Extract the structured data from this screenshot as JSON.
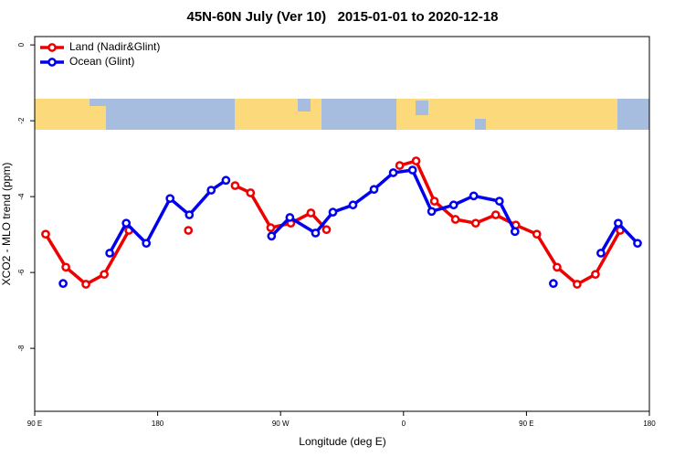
{
  "chart_data": {
    "type": "line",
    "title": "45N-60N July (Ver 10)   2015-01-01 to 2020-12-18",
    "x_label": "Longitude (deg E)",
    "y_label": "XCO2 - MLO trend (ppm)",
    "xlim": [
      90,
      540
    ],
    "ylim": [
      -9.66,
      0.22
    ],
    "xticks": [
      {
        "value": 90,
        "label": "90 E"
      },
      180,
      {
        "value": 270,
        "label": "90 W"
      },
      {
        "value": 360,
        "label": "0"
      },
      {
        "value": 450,
        "label": "90 E"
      },
      {
        "value": 540,
        "label": "180"
      }
    ],
    "yticks": [
      0,
      -2,
      -4,
      -6,
      -8
    ],
    "legend": "top-left",
    "series": [
      {
        "name": "Land (Nadir&Glint)",
        "color": "#ee0000",
        "x": [
          98.0,
          112.8,
          127.5,
          140.9,
          159.0,
          null,
          202.5,
          null,
          236.7,
          248.0,
          262.8,
          277.5,
          292.2,
          303.6,
          null,
          357.2,
          369.2,
          382.6,
          398.0,
          412.8,
          427.5,
          442.2,
          457.6,
          472.4,
          487.1,
          500.5,
          518.6
        ],
        "values": [
          -4.99,
          -5.86,
          -6.31,
          -6.05,
          -4.89,
          null,
          -4.89,
          null,
          -3.71,
          -3.9,
          -4.82,
          -4.7,
          -4.43,
          -4.87,
          null,
          -3.18,
          -3.06,
          -4.12,
          -4.6,
          -4.7,
          -4.48,
          -4.75,
          -4.99,
          -5.86,
          -6.31,
          -6.05,
          -4.89
        ]
      },
      {
        "name": "Ocean (Glint)",
        "color": "#0000ee",
        "x": [
          110.8,
          null,
          144.9,
          157.0,
          171.7,
          189.1,
          203.2,
          219.2,
          230.0,
          null,
          263.4,
          276.8,
          295.6,
          308.3,
          323.0,
          338.4,
          352.5,
          366.6,
          380.6,
          396.7,
          411.4,
          430.2,
          441.6,
          null,
          469.7,
          null,
          504.5,
          517.2,
          531.3
        ],
        "values": [
          -6.29,
          null,
          -5.49,
          -4.7,
          -5.23,
          -4.05,
          -4.48,
          -3.83,
          -3.57,
          null,
          -5.04,
          -4.55,
          -4.96,
          -4.41,
          -4.22,
          -3.81,
          -3.37,
          -3.3,
          -4.39,
          -4.22,
          -3.98,
          -4.12,
          -4.92,
          null,
          -6.29,
          null,
          -5.49,
          -4.7,
          -5.23
        ]
      }
    ]
  }
}
